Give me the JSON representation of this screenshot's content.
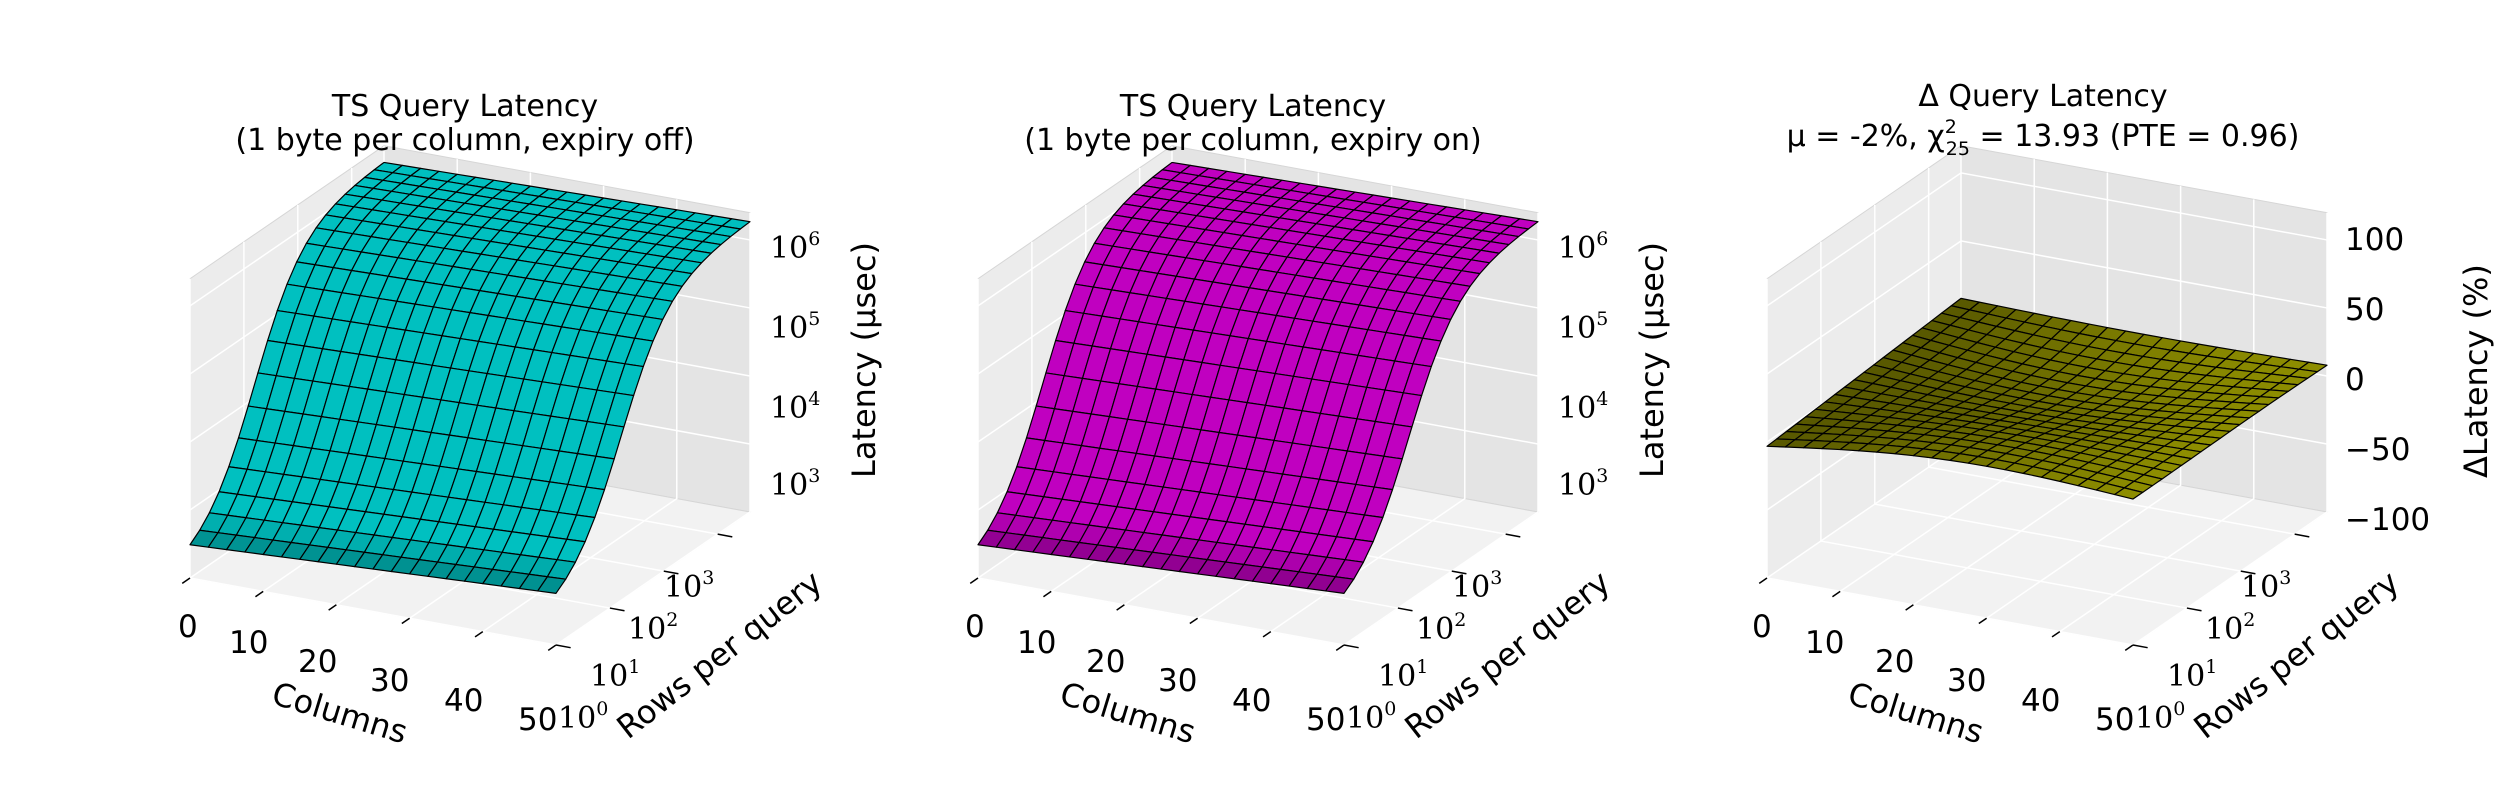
{
  "chart_data": [
    {
      "type": "surface3d",
      "title": "TS Query Latency",
      "subtitle": "(1 byte per column, expiry off)",
      "xlabel": "Columns",
      "ylabel": "Rows per query",
      "zlabel": "Latency (μsec)",
      "x_ticks": [
        "0",
        "10",
        "20",
        "30",
        "40",
        "50"
      ],
      "y_ticks": [
        "10",
        "10",
        "10",
        "10"
      ],
      "y_tick_exponents": [
        "0",
        "1",
        "2",
        "3"
      ],
      "z_ticks": [
        "10",
        "10",
        "10",
        "10"
      ],
      "z_tick_exponents": [
        "3",
        "4",
        "5",
        "6"
      ],
      "z_scale": "log",
      "xlim": [
        0,
        50
      ],
      "ylim_log10": [
        0,
        3.6
      ],
      "zlim_log10": [
        2.3,
        6.2
      ],
      "grid": true,
      "surface_color": "#00c0c0",
      "surface": {
        "z_log10_at_min_rows": 2.5,
        "z_log10_at_max_rows": 6.0,
        "z_log10_increase_across_columns": 0.25
      }
    },
    {
      "type": "surface3d",
      "title": "TS Query Latency",
      "subtitle": "(1 byte per column, expiry on)",
      "xlabel": "Columns",
      "ylabel": "Rows per query",
      "zlabel": "Latency (μsec)",
      "x_ticks": [
        "0",
        "10",
        "20",
        "30",
        "40",
        "50"
      ],
      "y_ticks": [
        "10",
        "10",
        "10",
        "10"
      ],
      "y_tick_exponents": [
        "0",
        "1",
        "2",
        "3"
      ],
      "z_ticks": [
        "10",
        "10",
        "10",
        "10"
      ],
      "z_tick_exponents": [
        "3",
        "4",
        "5",
        "6"
      ],
      "z_scale": "log",
      "xlim": [
        0,
        50
      ],
      "ylim_log10": [
        0,
        3.6
      ],
      "zlim_log10": [
        2.3,
        6.2
      ],
      "grid": true,
      "surface_color": "#c000c0",
      "surface": {
        "z_log10_at_min_rows": 2.5,
        "z_log10_at_max_rows": 6.0,
        "z_log10_increase_across_columns": 0.25
      }
    },
    {
      "type": "surface3d",
      "title": "Δ Query Latency",
      "subtitle_prefix": "μ = -2%, χ",
      "subtitle_chi_sup": "2",
      "subtitle_chi_sub": "25",
      "subtitle_suffix": " = 13.93 (PTE = 0.96)",
      "xlabel": "Columns",
      "ylabel": "Rows per query",
      "zlabel": "ΔLatency (%)",
      "x_ticks": [
        "0",
        "10",
        "20",
        "30",
        "40",
        "50"
      ],
      "y_ticks": [
        "10",
        "10",
        "10",
        "10"
      ],
      "y_tick_exponents": [
        "0",
        "1",
        "2",
        "3"
      ],
      "z_ticks": [
        "100",
        "50",
        "0",
        "−50",
        "−100"
      ],
      "z_scale": "linear",
      "xlim": [
        0,
        50
      ],
      "ylim_log10": [
        0,
        3.6
      ],
      "zlim": [
        -100,
        100
      ],
      "grid": true,
      "surface_color": "#c0c000",
      "surface": {
        "mean_percent": -2,
        "ripple_amplitude_percent": 8
      }
    }
  ]
}
